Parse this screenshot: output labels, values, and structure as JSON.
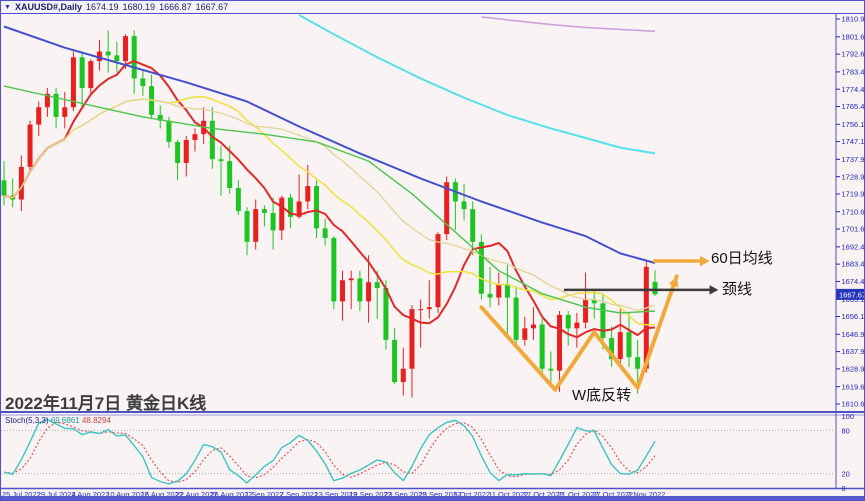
{
  "window": {
    "collapse_icon": "▼",
    "symbol_period": "XAUUSD#,Daily",
    "ohlc": {
      "open": "1674.19",
      "high": "1680.19",
      "low": "1666.87",
      "close": "1667.67"
    }
  },
  "caption": "2022年11月7日 黄金日K线",
  "annotations": {
    "ma60_label": "60日均线",
    "neckline_label": "颈线",
    "w_bottom_label": "W底反转"
  },
  "indicator": {
    "label": "Stoch(5,3,3)",
    "k_value": "69.6861",
    "d_value": "48.8294"
  },
  "chart_data": {
    "type": "candlestick",
    "title": "XAUUSD# Daily",
    "up_color": "#e82020",
    "down_color": "#1ec422",
    "background": "#f9f3f3",
    "axis_color": "#5050c8",
    "label_color": "#2222bb",
    "ylim": [
      1607,
      1813
    ],
    "price_ticks": [
      "1810.90",
      "1801.65",
      "1792.65",
      "1783.40",
      "1774.40",
      "1765.40",
      "1756.15",
      "1747.15",
      "1737.90",
      "1728.90",
      "1719.90",
      "1710.65",
      "1701.65",
      "1692.40",
      "1683.40",
      "1674.40",
      "1665.15",
      "1656.15",
      "1646.90",
      "1637.90",
      "1628.90",
      "1619.65",
      "1610.65"
    ],
    "current_price": 1667.67,
    "current_price_label": "1667.67",
    "x_labels": [
      "25 Jul 2022",
      "29 Jul 2022",
      "4 Aug 2022",
      "10 Aug 2022",
      "16 Aug 2022",
      "22 Aug 2022",
      "26 Aug 2022",
      "1 Sep 2022",
      "7 Sep 2022",
      "13 Sep 2022",
      "19 Sep 2022",
      "23 Sep 2022",
      "29 Sep 2022",
      "5 Oct 2022",
      "11 Oct 2022",
      "17 Oct 2022",
      "21 Oct 2022",
      "27 Oct 2022",
      "2 Nov 2022"
    ],
    "x_label_every": 4,
    "ohlc": [
      [
        1727,
        1737,
        1714,
        1719
      ],
      [
        1719,
        1728,
        1713,
        1717
      ],
      [
        1717,
        1740,
        1711,
        1734
      ],
      [
        1734,
        1758,
        1732,
        1756
      ],
      [
        1756,
        1768,
        1750,
        1765
      ],
      [
        1765,
        1775,
        1760,
        1772
      ],
      [
        1772,
        1775,
        1754,
        1760
      ],
      [
        1760,
        1773,
        1754,
        1765
      ],
      [
        1765,
        1794,
        1763,
        1791
      ],
      [
        1791,
        1794,
        1764,
        1775
      ],
      [
        1775,
        1790,
        1772,
        1789
      ],
      [
        1789,
        1800,
        1784,
        1794
      ],
      [
        1794,
        1805,
        1783,
        1792
      ],
      [
        1792,
        1799,
        1783,
        1789
      ],
      [
        1789,
        1803,
        1785,
        1802
      ],
      [
        1802,
        1805,
        1772,
        1780
      ],
      [
        1780,
        1784,
        1771,
        1776
      ],
      [
        1776,
        1782,
        1759,
        1761
      ],
      [
        1761,
        1766,
        1754,
        1758
      ],
      [
        1758,
        1760,
        1744,
        1747
      ],
      [
        1747,
        1748,
        1727,
        1736
      ],
      [
        1736,
        1750,
        1729,
        1748
      ],
      [
        1748,
        1754,
        1742,
        1751
      ],
      [
        1751,
        1765,
        1746,
        1758
      ],
      [
        1758,
        1765,
        1733,
        1738
      ],
      [
        1738,
        1745,
        1719,
        1737
      ],
      [
        1737,
        1745,
        1720,
        1723
      ],
      [
        1723,
        1727,
        1709,
        1711
      ],
      [
        1711,
        1713,
        1688,
        1695
      ],
      [
        1695,
        1717,
        1691,
        1712
      ],
      [
        1712,
        1714,
        1703,
        1710
      ],
      [
        1710,
        1718,
        1691,
        1701
      ],
      [
        1701,
        1719,
        1696,
        1718
      ],
      [
        1718,
        1720,
        1702,
        1708
      ],
      [
        1708,
        1730,
        1707,
        1716
      ],
      [
        1716,
        1735,
        1712,
        1724
      ],
      [
        1724,
        1727,
        1697,
        1702
      ],
      [
        1702,
        1707,
        1693,
        1697
      ],
      [
        1697,
        1698,
        1660,
        1664
      ],
      [
        1664,
        1680,
        1654,
        1675
      ],
      [
        1675,
        1680,
        1660,
        1676
      ],
      [
        1676,
        1680,
        1659,
        1664
      ],
      [
        1664,
        1688,
        1653,
        1674
      ],
      [
        1674,
        1680,
        1655,
        1671
      ],
      [
        1671,
        1675,
        1639,
        1644
      ],
      [
        1644,
        1650,
        1621,
        1622
      ],
      [
        1622,
        1640,
        1615,
        1629
      ],
      [
        1629,
        1662,
        1614,
        1660
      ],
      [
        1660,
        1665,
        1640,
        1660
      ],
      [
        1660,
        1675,
        1655,
        1661
      ],
      [
        1661,
        1700,
        1658,
        1699
      ],
      [
        1699,
        1729,
        1696,
        1726
      ],
      [
        1726,
        1728,
        1701,
        1716
      ],
      [
        1716,
        1725,
        1706,
        1712
      ],
      [
        1712,
        1716,
        1688,
        1695
      ],
      [
        1695,
        1699,
        1665,
        1668
      ],
      [
        1668,
        1682,
        1661,
        1666
      ],
      [
        1666,
        1679,
        1662,
        1673
      ],
      [
        1673,
        1683,
        1645,
        1666
      ],
      [
        1666,
        1672,
        1640,
        1644
      ],
      [
        1644,
        1656,
        1641,
        1650
      ],
      [
        1650,
        1661,
        1644,
        1652
      ],
      [
        1652,
        1655,
        1624,
        1629
      ],
      [
        1629,
        1638,
        1620,
        1628
      ],
      [
        1628,
        1659,
        1617,
        1657
      ],
      [
        1657,
        1659,
        1641,
        1650
      ],
      [
        1650,
        1658,
        1640,
        1653
      ],
      [
        1653,
        1679,
        1650,
        1665
      ],
      [
        1665,
        1670,
        1655,
        1663
      ],
      [
        1663,
        1668,
        1639,
        1645
      ],
      [
        1645,
        1651,
        1630,
        1634
      ],
      [
        1634,
        1660,
        1632,
        1648
      ],
      [
        1648,
        1658,
        1630,
        1635
      ],
      [
        1635,
        1644,
        1616,
        1629
      ],
      [
        1629,
        1685,
        1627,
        1682
      ],
      [
        1674.19,
        1680.19,
        1666.87,
        1667.67
      ]
    ],
    "ma_computed": [
      {
        "name": "fast-ma-red",
        "period": 8,
        "color": "#e02828",
        "width": 2
      },
      {
        "name": "ma20-yellow",
        "period": 20,
        "color": "#efe23c",
        "width": 1.5
      },
      {
        "name": "ma30-khaki",
        "period": 30,
        "color": "#e2d494",
        "width": 1.3
      }
    ],
    "overlay_lines": [
      {
        "name": "ma60-blue",
        "color": "#4450cc",
        "width": 2,
        "points": [
          [
            0,
            1807
          ],
          [
            7,
            1796
          ],
          [
            14,
            1787
          ],
          [
            21,
            1778
          ],
          [
            28,
            1768
          ],
          [
            34,
            1755
          ],
          [
            41,
            1741
          ],
          [
            48,
            1728
          ],
          [
            55,
            1716
          ],
          [
            62,
            1705
          ],
          [
            67,
            1698
          ],
          [
            71,
            1689
          ],
          [
            75,
            1684
          ]
        ]
      },
      {
        "name": "ma-green",
        "color": "#4cc44c",
        "width": 1.4,
        "points": [
          [
            0,
            1776
          ],
          [
            8,
            1768
          ],
          [
            16,
            1760
          ],
          [
            24,
            1754
          ],
          [
            30,
            1751
          ],
          [
            36,
            1747
          ],
          [
            42,
            1737
          ],
          [
            47,
            1720
          ],
          [
            52,
            1700
          ],
          [
            57,
            1680
          ],
          [
            62,
            1668
          ],
          [
            67,
            1661
          ],
          [
            71,
            1658
          ],
          [
            75,
            1659
          ]
        ]
      },
      {
        "name": "ma-cyan",
        "color": "#58e0ea",
        "width": 2,
        "points": [
          [
            34,
            1813
          ],
          [
            38,
            1803
          ],
          [
            43,
            1791
          ],
          [
            48,
            1780
          ],
          [
            53,
            1770
          ],
          [
            58,
            1761
          ],
          [
            63,
            1754
          ],
          [
            67,
            1749
          ],
          [
            71,
            1744
          ],
          [
            75,
            1741
          ]
        ]
      },
      {
        "name": "ma-violet",
        "color": "#cf9ede",
        "width": 1.6,
        "points": [
          [
            55,
            1812
          ],
          [
            59,
            1810
          ],
          [
            63,
            1808
          ],
          [
            67,
            1806.5
          ],
          [
            71,
            1805.5
          ],
          [
            75,
            1804.5
          ]
        ]
      }
    ],
    "drawings": {
      "w_shape": {
        "color": "#f2a93b",
        "width": 4,
        "points": [
          [
            55,
            1661
          ],
          [
            63.5,
            1618
          ],
          [
            68,
            1648
          ],
          [
            73,
            1619
          ],
          [
            77.5,
            1677
          ]
        ],
        "arrow_end": true
      },
      "ma60_arrow": {
        "color": "#f2a93b",
        "width": 3.5,
        "y_price": 1685,
        "from_bar": 74.8,
        "to_bar": 81.3
      },
      "neckline_arrow": {
        "color": "#3c3c3c",
        "width": 2.5,
        "y_price": 1670,
        "from_bar": 64.5,
        "to_bar": 82.3
      }
    },
    "sub_chart": {
      "type": "line",
      "name": "Stochastic Oscillator",
      "params": "Stoch(5,3,3)",
      "k_period": 5,
      "d_period": 3,
      "slowing": 3,
      "range": [
        0,
        100
      ],
      "levels": [
        80,
        20
      ],
      "scale_labels": [
        "100",
        "80",
        "20",
        "0"
      ],
      "k_color": "#3fc2c2",
      "d_color": "#e05555",
      "k_current": 69.6861,
      "d_current": 48.8294
    }
  }
}
